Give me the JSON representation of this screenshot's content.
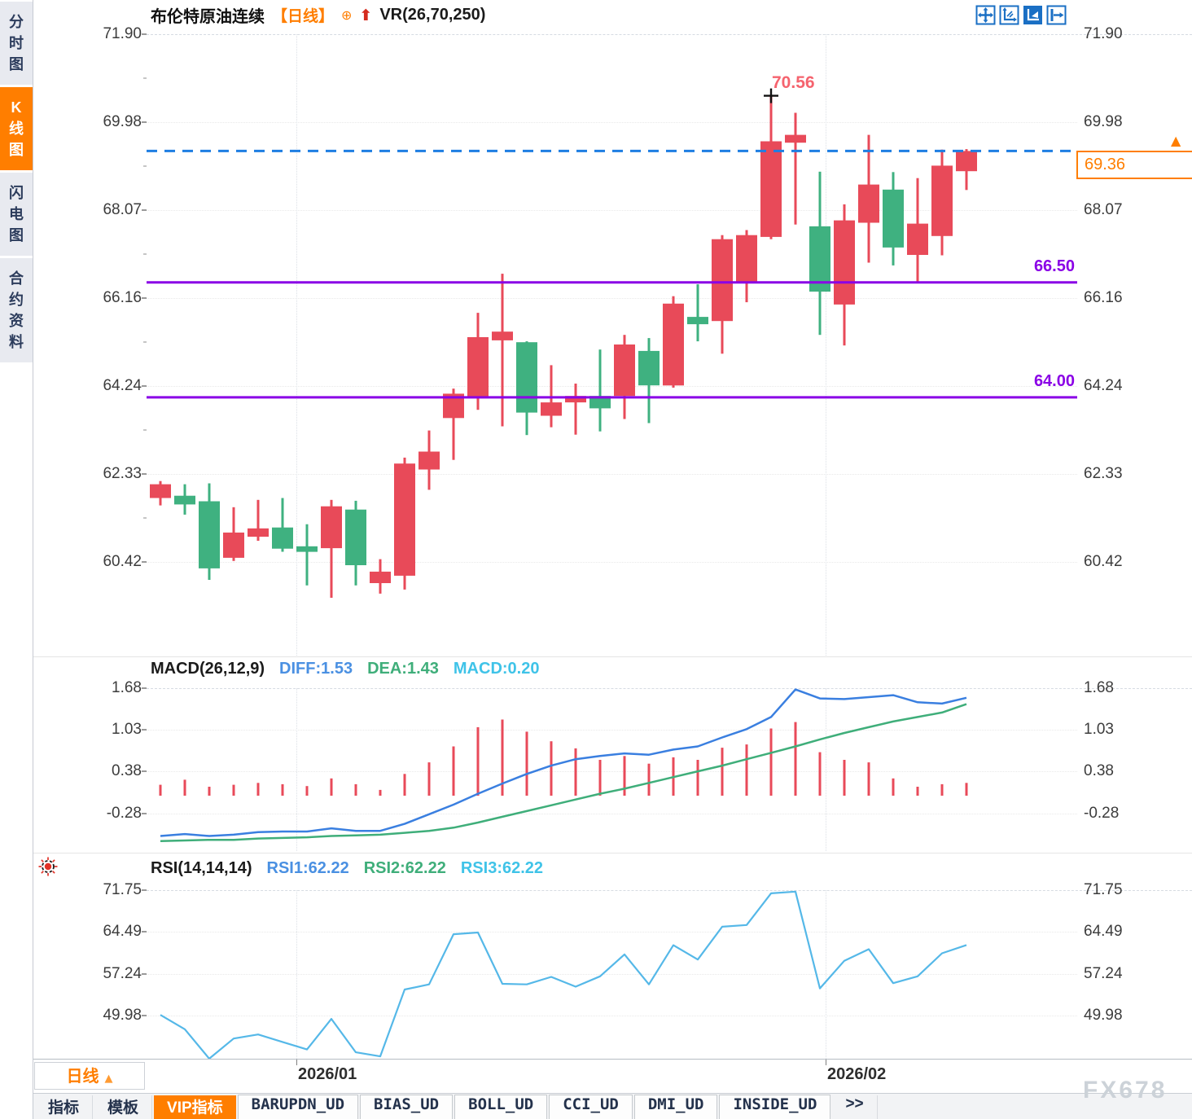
{
  "header": {
    "title": "布伦特原油连续",
    "period_tag": "【日线】",
    "add_icon": "⊕",
    "up_arrow": "⬆",
    "indicator_label": "VR(26,70,250)",
    "toolbar_icons": [
      "crosshair-move-icon",
      "axis-zoom-icon",
      "axis-play-icon",
      "send-right-icon"
    ]
  },
  "sidebar": {
    "items": [
      {
        "label": "分时图",
        "active": false
      },
      {
        "label": "K线图",
        "active": true
      },
      {
        "label": "闪电图",
        "active": false
      },
      {
        "label": "合约资料",
        "active": false
      }
    ]
  },
  "price_panel": {
    "y_ticks": [
      "71.90",
      "69.98",
      "68.07",
      "66.16",
      "64.24",
      "62.33",
      "60.42"
    ],
    "support_lines": [
      {
        "label": "66.50",
        "value": 66.5
      },
      {
        "label": "64.00",
        "value": 64.0
      }
    ],
    "last_price": {
      "label": "69.36",
      "value": 69.36
    },
    "peak_label": "70.56",
    "peak_value": 70.56,
    "marker": "▲"
  },
  "macd_panel": {
    "title": "MACD(26,12,9)",
    "diff_label": "DIFF:1.53",
    "dea_label": "DEA:1.43",
    "macd_label": "MACD:0.20",
    "y_ticks": [
      "1.68",
      "1.03",
      "0.38",
      "-0.28"
    ]
  },
  "rsi_panel": {
    "title": "RSI(14,14,14)",
    "rsi1_label": "RSI1:62.22",
    "rsi2_label": "RSI2:62.22",
    "rsi3_label": "RSI3:62.22",
    "y_ticks": [
      "71.75",
      "64.49",
      "57.24",
      "49.98"
    ]
  },
  "x_axis": {
    "period_label": "日线",
    "caret": "▲",
    "labels": [
      "2026/01",
      "2026/02"
    ]
  },
  "bottom_tabs": [
    {
      "label": "指标",
      "style": "plain"
    },
    {
      "label": "模板",
      "style": "plain"
    },
    {
      "label": "VIP指标",
      "style": "active"
    },
    {
      "label": "BARUPDN_UD",
      "style": "boxed"
    },
    {
      "label": "BIAS_UD",
      "style": "boxed"
    },
    {
      "label": "BOLL_UD",
      "style": "boxed"
    },
    {
      "label": "CCI_UD",
      "style": "boxed"
    },
    {
      "label": "DMI_UD",
      "style": "boxed"
    },
    {
      "label": "INSIDE_UD",
      "style": "boxed"
    },
    {
      "label": ">>",
      "style": "plain"
    }
  ],
  "watermark": "FX678",
  "colors": {
    "accent_orange": "#ff7e00",
    "bull_red": "#e84a59",
    "bear_green": "#3fb180",
    "support_purple": "#8a00e6",
    "dashed_blue": "#1e7ee2",
    "diff_blue": "#3a7fe0",
    "dea_green": "#3fae7a",
    "macd_cyan": "#3fc3e8",
    "rsi_blue": "#55b8e8",
    "icon_blue": "#1a6fc4"
  },
  "chart_data": [
    {
      "type": "candlestick",
      "title": "布伦特原油连续 日线",
      "ylim": [
        59.5,
        71.9
      ],
      "y_ticks": [
        71.9,
        69.98,
        68.07,
        66.16,
        64.24,
        62.33,
        60.42
      ],
      "annotations": {
        "high_label": 70.56,
        "last_close": 69.36,
        "support_levels": [
          66.5,
          64.0
        ]
      },
      "ohlc": [
        [
          61.81,
          62.18,
          61.65,
          62.11
        ],
        [
          61.86,
          62.11,
          61.45,
          61.67
        ],
        [
          61.74,
          62.13,
          60.03,
          60.28
        ],
        [
          60.51,
          61.61,
          60.44,
          61.06
        ],
        [
          60.97,
          61.77,
          60.88,
          61.15
        ],
        [
          61.17,
          61.81,
          60.64,
          60.71
        ],
        [
          60.76,
          61.24,
          59.91,
          60.64
        ],
        [
          60.72,
          61.77,
          59.64,
          61.63
        ],
        [
          61.56,
          61.75,
          59.91,
          60.35
        ],
        [
          59.96,
          60.48,
          59.73,
          60.21
        ],
        [
          60.12,
          62.69,
          59.82,
          62.56
        ],
        [
          62.43,
          63.28,
          61.99,
          62.82
        ],
        [
          63.55,
          64.19,
          62.64,
          64.08
        ],
        [
          63.98,
          65.84,
          63.73,
          65.31
        ],
        [
          65.24,
          66.69,
          63.37,
          65.43
        ],
        [
          65.2,
          65.22,
          63.18,
          63.67
        ],
        [
          63.6,
          64.7,
          63.35,
          63.89
        ],
        [
          63.89,
          64.3,
          63.19,
          64.03
        ],
        [
          64.03,
          65.04,
          63.26,
          63.76
        ],
        [
          64.03,
          65.36,
          63.53,
          65.15
        ],
        [
          65.01,
          65.29,
          63.44,
          64.26
        ],
        [
          64.26,
          66.2,
          64.21,
          66.04
        ],
        [
          65.75,
          66.46,
          65.22,
          65.59
        ],
        [
          65.66,
          67.53,
          64.95,
          67.44
        ],
        [
          66.48,
          67.64,
          66.07,
          67.53
        ],
        [
          67.49,
          70.56,
          67.44,
          69.57
        ],
        [
          69.54,
          70.19,
          67.76,
          69.71
        ],
        [
          67.72,
          68.91,
          65.36,
          66.3
        ],
        [
          66.02,
          68.2,
          65.13,
          67.85
        ],
        [
          67.8,
          69.71,
          66.93,
          68.63
        ],
        [
          68.52,
          68.9,
          66.87,
          67.26
        ],
        [
          67.1,
          68.77,
          66.52,
          67.78
        ],
        [
          67.51,
          69.39,
          67.09,
          69.04
        ],
        [
          68.92,
          69.4,
          68.51,
          69.36
        ]
      ]
    },
    {
      "type": "bar",
      "title": "MACD(26,12,9)",
      "ylim": [
        -0.8,
        1.8
      ],
      "y_ticks": [
        1.68,
        1.03,
        0.38,
        -0.28
      ],
      "last": {
        "DIFF": 1.53,
        "DEA": 1.43,
        "MACD": 0.2
      },
      "hist": [
        0.17,
        0.25,
        0.14,
        0.17,
        0.2,
        0.18,
        0.15,
        0.27,
        0.18,
        0.09,
        0.34,
        0.52,
        0.77,
        1.07,
        1.19,
        1.0,
        0.85,
        0.74,
        0.56,
        0.62,
        0.5,
        0.6,
        0.56,
        0.75,
        0.8,
        1.05,
        1.15,
        0.68,
        0.56,
        0.52,
        0.27,
        0.14,
        0.18,
        0.2
      ],
      "series": [
        {
          "name": "DIFF",
          "values": [
            -0.63,
            -0.6,
            -0.63,
            -0.61,
            -0.57,
            -0.56,
            -0.56,
            -0.51,
            -0.55,
            -0.55,
            -0.44,
            -0.29,
            -0.14,
            0.03,
            0.19,
            0.34,
            0.47,
            0.57,
            0.62,
            0.66,
            0.64,
            0.72,
            0.77,
            0.91,
            1.04,
            1.23,
            1.66,
            1.52,
            1.51,
            1.54,
            1.57,
            1.46,
            1.44,
            1.53
          ]
        },
        {
          "name": "DEA",
          "values": [
            -0.71,
            -0.7,
            -0.69,
            -0.69,
            -0.67,
            -0.66,
            -0.65,
            -0.63,
            -0.62,
            -0.61,
            -0.58,
            -0.55,
            -0.5,
            -0.42,
            -0.33,
            -0.24,
            -0.15,
            -0.06,
            0.03,
            0.11,
            0.2,
            0.29,
            0.38,
            0.47,
            0.57,
            0.67,
            0.77,
            0.88,
            0.98,
            1.07,
            1.16,
            1.23,
            1.3,
            1.43
          ]
        }
      ]
    },
    {
      "type": "line",
      "title": "RSI(14,14,14)",
      "ylim": [
        40,
        75
      ],
      "y_ticks": [
        71.75,
        64.49,
        57.24,
        49.98
      ],
      "last": {
        "RSI1": 62.22,
        "RSI2": 62.22,
        "RSI3": 62.22
      },
      "series": [
        {
          "name": "RSI",
          "values": [
            50.1,
            47.6,
            42.5,
            46.0,
            46.7,
            45.4,
            44.1,
            49.4,
            43.6,
            42.9,
            54.5,
            55.4,
            64.1,
            64.4,
            55.5,
            55.4,
            56.7,
            55.0,
            56.8,
            60.6,
            55.4,
            62.2,
            59.7,
            65.4,
            65.7,
            71.2,
            71.5,
            54.7,
            59.5,
            61.5,
            55.6,
            56.8,
            60.8,
            62.22
          ]
        }
      ]
    }
  ]
}
